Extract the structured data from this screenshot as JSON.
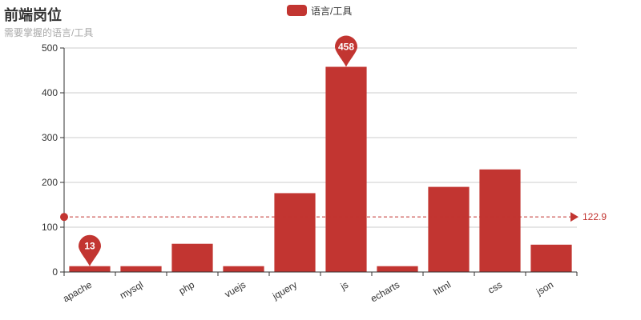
{
  "header": {
    "title": "前端岗位",
    "subtitle": "需要掌握的语言/工具"
  },
  "legend": {
    "label": "语言/工具",
    "color": "#c23531"
  },
  "chart_data": {
    "type": "bar",
    "categories": [
      "apache",
      "mysql",
      "php",
      "vuejs",
      "jquery",
      "js",
      "echarts",
      "html",
      "css",
      "json"
    ],
    "series": [
      {
        "name": "语言/工具",
        "values": [
          13,
          13,
          63,
          13,
          176,
          458,
          13,
          190,
          229,
          61
        ]
      }
    ],
    "ylim": [
      0,
      500
    ],
    "yticks": [
      0,
      100,
      200,
      300,
      400,
      500
    ],
    "grid": true,
    "legend_position": "top-center",
    "mark_points": [
      {
        "label": "458",
        "category": "js",
        "value": 458
      },
      {
        "label": "13",
        "category": "apache",
        "value": 13
      }
    ],
    "mark_line": {
      "type": "average",
      "value": 122.9,
      "label": "122.9"
    },
    "bar_color": "#c23531"
  }
}
